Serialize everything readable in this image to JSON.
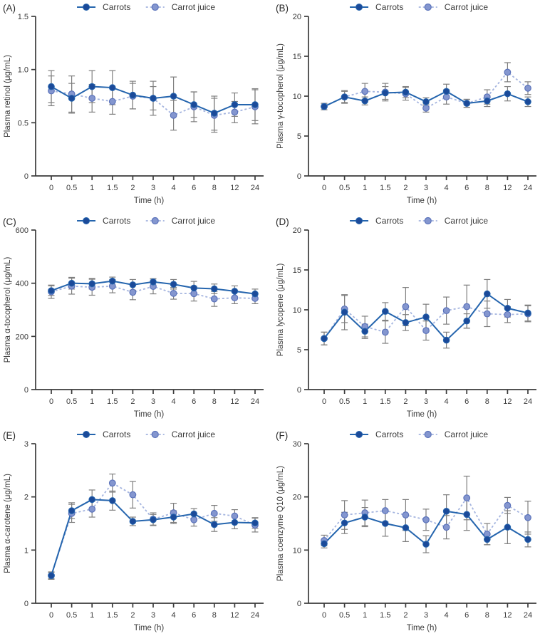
{
  "figure": {
    "background": "#ffffff",
    "panels_order": [
      "A",
      "B",
      "C",
      "D",
      "E",
      "F"
    ]
  },
  "colors": {
    "carrots_line": "#2565ae",
    "carrots_marker": "#1b4a99",
    "juice_line": "#a4b4df",
    "juice_marker": "#8496cf",
    "juice_marker_edge": "#5a72ba",
    "error": "#7f7f7f",
    "axis": "#3a3a3a",
    "text": "#3a3a3a"
  },
  "legend": {
    "items": [
      {
        "label": "Carrots",
        "style": "solid"
      },
      {
        "label": "Carrot juice",
        "style": "dashed"
      }
    ]
  },
  "chart_data": [
    {
      "type": "line",
      "panel": "(A)",
      "xlabel": "Time (h)",
      "ylabel": "Plasma retinol (μg/mL)",
      "categories": [
        "0",
        "0.5",
        "1",
        "1.5",
        "2",
        "3",
        "4",
        "6",
        "8",
        "12",
        "24"
      ],
      "ylim": [
        0,
        1.5
      ],
      "yticks": [
        0,
        0.5,
        1.0,
        1.5
      ],
      "ytick_labels": [
        "0",
        "0.5",
        "1.0",
        "1.5"
      ],
      "legend_position": "top-center",
      "grid": false,
      "series": [
        {
          "name": "Carrots",
          "values": [
            0.84,
            0.73,
            0.84,
            0.83,
            0.76,
            0.73,
            0.75,
            0.67,
            0.59,
            0.67,
            0.67
          ],
          "errors": [
            0.15,
            0.14,
            0.15,
            0.16,
            0.13,
            0.11,
            0.18,
            0.12,
            0.16,
            0.11,
            0.15
          ]
        },
        {
          "name": "Carrot juice",
          "values": [
            0.8,
            0.77,
            0.73,
            0.7,
            0.75,
            0.73,
            0.57,
            0.65,
            0.57,
            0.6,
            0.65
          ],
          "errors": [
            0.14,
            0.17,
            0.13,
            0.12,
            0.12,
            0.16,
            0.14,
            0.14,
            0.16,
            0.1,
            0.16
          ]
        }
      ]
    },
    {
      "type": "line",
      "panel": "(B)",
      "xlabel": "Time (h)",
      "ylabel": "Plasma γ-tocopherol (μg/mL)",
      "categories": [
        "0",
        "0.5",
        "1",
        "1.5",
        "2",
        "3",
        "4",
        "6",
        "8",
        "12",
        "24"
      ],
      "ylim": [
        0,
        20
      ],
      "yticks": [
        0,
        5,
        10,
        15,
        20
      ],
      "ytick_labels": [
        "0",
        "5",
        "10",
        "15",
        "20"
      ],
      "legend_position": "top-center",
      "grid": false,
      "series": [
        {
          "name": "Carrots",
          "values": [
            8.7,
            9.9,
            9.4,
            10.4,
            10.5,
            9.3,
            10.6,
            9.1,
            9.4,
            10.3,
            9.3
          ],
          "errors": [
            0.4,
            0.7,
            0.5,
            0.8,
            0.7,
            0.5,
            0.9,
            0.5,
            0.7,
            0.9,
            0.6
          ]
        },
        {
          "name": "Carrot juice",
          "values": [
            8.7,
            9.9,
            10.6,
            10.5,
            10.3,
            8.5,
            9.9,
            9.1,
            9.9,
            13.0,
            11.0
          ],
          "errors": [
            0.4,
            0.8,
            1.0,
            1.1,
            0.8,
            0.5,
            0.9,
            0.5,
            0.9,
            1.2,
            0.8
          ]
        }
      ]
    },
    {
      "type": "line",
      "panel": "(C)",
      "xlabel": "Time (h)",
      "ylabel": "Plasma α-tocopherol (μg/mL)",
      "categories": [
        "0",
        "0.5",
        "1",
        "1.5",
        "2",
        "3",
        "4",
        "6",
        "8",
        "12",
        "24"
      ],
      "ylim": [
        0,
        600
      ],
      "yticks": [
        0,
        200,
        400,
        600
      ],
      "ytick_labels": [
        "0",
        "200",
        "400",
        "600"
      ],
      "legend_position": "top-center",
      "grid": false,
      "series": [
        {
          "name": "Carrots",
          "values": [
            372,
            400,
            398,
            408,
            394,
            405,
            396,
            382,
            379,
            370,
            360
          ],
          "errors": [
            18,
            22,
            20,
            15,
            20,
            12,
            18,
            25,
            18,
            20,
            18
          ]
        },
        {
          "name": "Carrot juice",
          "values": [
            368,
            389,
            385,
            389,
            366,
            388,
            362,
            361,
            341,
            345,
            343
          ],
          "errors": [
            25,
            30,
            30,
            25,
            28,
            28,
            22,
            28,
            28,
            22,
            20
          ]
        }
      ]
    },
    {
      "type": "line",
      "panel": "(D)",
      "xlabel": "Time (h)",
      "ylabel": "Plasma lycopene (μg/mL)",
      "categories": [
        "0",
        "0.5",
        "1",
        "1.5",
        "2",
        "3",
        "4",
        "6",
        "8",
        "12",
        "24"
      ],
      "ylim": [
        0,
        20
      ],
      "yticks": [
        0,
        5,
        10,
        15,
        20
      ],
      "ytick_labels": [
        "0",
        "5",
        "10",
        "15",
        "20"
      ],
      "legend_position": "top-center",
      "grid": false,
      "series": [
        {
          "name": "Carrots",
          "values": [
            6.4,
            9.7,
            7.3,
            9.8,
            8.4,
            9.1,
            6.2,
            8.6,
            12.0,
            10.2,
            9.6
          ],
          "errors": [
            0.8,
            2.2,
            0.9,
            1.1,
            1.0,
            1.6,
            1.0,
            0.9,
            1.8,
            1.1,
            1.0
          ]
        },
        {
          "name": "Carrot juice",
          "values": [
            6.4,
            10.1,
            7.9,
            7.2,
            10.4,
            7.4,
            9.9,
            10.4,
            9.5,
            9.4,
            9.5
          ],
          "errors": [
            0.8,
            1.7,
            1.3,
            1.4,
            2.4,
            1.2,
            1.7,
            2.7,
            1.6,
            1.0,
            1.0
          ]
        }
      ]
    },
    {
      "type": "line",
      "panel": "(E)",
      "xlabel": "Time (h)",
      "ylabel": "Plasma α-carotene (μg/mL)",
      "categories": [
        "0",
        "0.5",
        "1",
        "1.5",
        "2",
        "3",
        "4",
        "6",
        "8",
        "12",
        "24"
      ],
      "ylim": [
        0,
        3
      ],
      "yticks": [
        0,
        1,
        2,
        3
      ],
      "ytick_labels": [
        "0",
        "1",
        "2",
        "3"
      ],
      "legend_position": "top-center",
      "grid": false,
      "series": [
        {
          "name": "Carrots",
          "values": [
            0.52,
            1.74,
            1.95,
            1.93,
            1.54,
            1.57,
            1.62,
            1.68,
            1.48,
            1.52,
            1.51
          ],
          "errors": [
            0.07,
            0.15,
            0.18,
            0.18,
            0.08,
            0.1,
            0.12,
            0.1,
            0.13,
            0.12,
            0.1
          ]
        },
        {
          "name": "Carrot juice",
          "values": [
            0.52,
            1.69,
            1.77,
            2.26,
            2.04,
            1.58,
            1.7,
            1.57,
            1.69,
            1.64,
            1.47
          ],
          "errors": [
            0.06,
            0.17,
            0.15,
            0.17,
            0.25,
            0.12,
            0.18,
            0.12,
            0.15,
            0.12,
            0.13
          ]
        }
      ]
    },
    {
      "type": "line",
      "panel": "(F)",
      "xlabel": "Time (h)",
      "ylabel": "Plasma coenzyme Q10 (μg/mL)",
      "categories": [
        "0",
        "0.5",
        "1",
        "1.5",
        "2",
        "3",
        "4",
        "6",
        "8",
        "12",
        "24"
      ],
      "ylim": [
        0,
        30
      ],
      "yticks": [
        0,
        10,
        20,
        30
      ],
      "ytick_labels": [
        "0",
        "10",
        "20",
        "30"
      ],
      "legend_position": "top-center",
      "grid": false,
      "series": [
        {
          "name": "Carrots",
          "values": [
            11.2,
            15.1,
            16.2,
            15.0,
            14.2,
            11.1,
            17.3,
            16.7,
            12.0,
            14.3,
            12.0
          ],
          "errors": [
            0.8,
            2.0,
            1.8,
            2.4,
            2.6,
            1.6,
            3.1,
            3.0,
            1.0,
            3.1,
            1.4
          ]
        },
        {
          "name": "Carrot juice",
          "values": [
            11.8,
            16.6,
            17.0,
            17.4,
            16.6,
            15.7,
            14.3,
            19.8,
            13.0,
            18.4,
            16.1
          ],
          "errors": [
            1.0,
            2.7,
            2.4,
            2.1,
            2.9,
            2.0,
            2.2,
            4.1,
            2.0,
            1.5,
            3.1
          ]
        }
      ]
    }
  ]
}
